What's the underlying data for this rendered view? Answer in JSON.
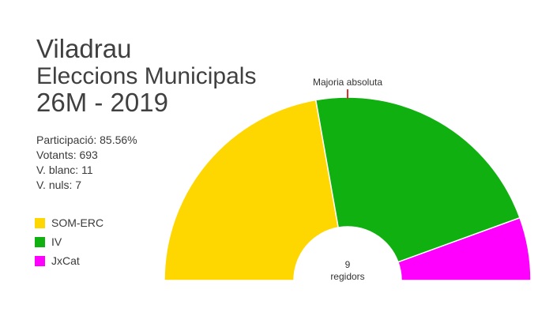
{
  "header": {
    "line1": "Viladrau",
    "line2": "Eleccions Municipals",
    "line3": "26M - 2019"
  },
  "stats": {
    "participacio": "Participació: 85.56%",
    "votants": "Votants: 693",
    "blanc": "V. blanc: 11",
    "nuls": "V. nuls: 7"
  },
  "chart_data": {
    "type": "pie",
    "layout": "half-donut parliament",
    "total_seats": 9,
    "center_label_number": "9",
    "center_label_text": "regidors",
    "majority_label": "Majoria absoluta",
    "series": [
      {
        "name": "SOM-ERC",
        "seats": 4,
        "color": "#ffd700"
      },
      {
        "name": "IV",
        "seats": 4,
        "color": "#0fb00f"
      },
      {
        "name": "JxCat",
        "seats": 1,
        "color": "#ff00ff"
      }
    ],
    "legend_position": "left"
  }
}
